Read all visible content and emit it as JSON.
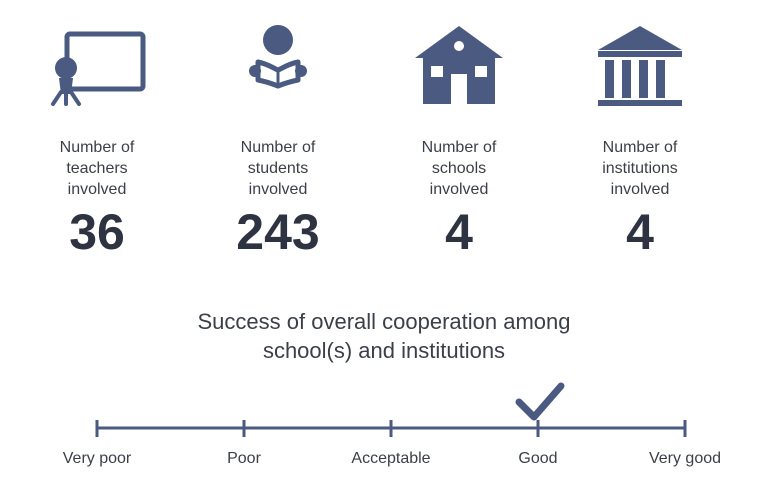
{
  "colors": {
    "icon": "#4a5a80",
    "text": "#333a45",
    "value": "#2d3340"
  },
  "stats": [
    {
      "icon": "teacher-blackboard-icon",
      "label": "Number of\nteachers\ninvolved",
      "value": "36"
    },
    {
      "icon": "student-reading-icon",
      "label": "Number of\nstudents\ninvolved",
      "value": "243"
    },
    {
      "icon": "school-house-icon",
      "label": "Number of\nschools\ninvolved",
      "value": "4"
    },
    {
      "icon": "institution-columns-icon",
      "label": "Number of\ninstitutions\ninvolved",
      "value": "4"
    }
  ],
  "cooperation": {
    "title_line1": "Success of overall cooperation among",
    "title_line2": "school(s) and institutions",
    "scale": [
      "Very poor",
      "Poor",
      "Acceptable",
      "Good",
      "Very good"
    ],
    "selected": "Good"
  }
}
